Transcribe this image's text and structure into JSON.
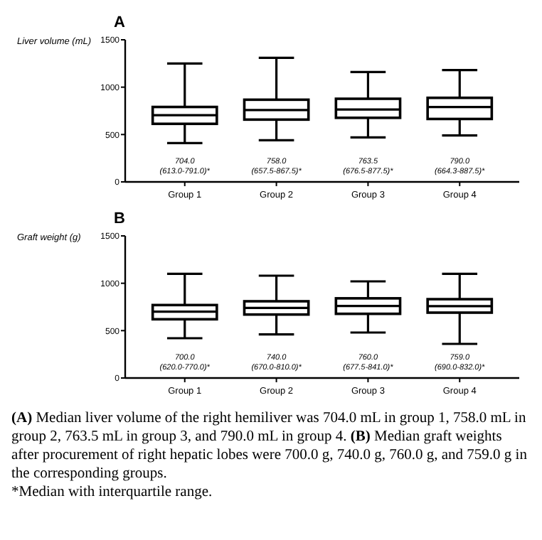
{
  "chart_data": [
    {
      "type": "box",
      "title": "A",
      "ylabel": "Liver volume (mL)",
      "categories": [
        "Group 1",
        "Group 2",
        "Group 3",
        "Group 4"
      ],
      "ylim": [
        0,
        1500
      ],
      "yticks": [
        0,
        500,
        1000,
        1500
      ],
      "grid": false,
      "color": "#000000",
      "boxes": [
        {
          "low": 410,
          "q1": 613.0,
          "median": 704.0,
          "q3": 791.0,
          "high": 1250
        },
        {
          "low": 440,
          "q1": 657.5,
          "median": 758.0,
          "q3": 867.5,
          "high": 1310
        },
        {
          "low": 470,
          "q1": 676.5,
          "median": 763.5,
          "q3": 877.5,
          "high": 1160
        },
        {
          "low": 490,
          "q1": 664.3,
          "median": 790.0,
          "q3": 887.5,
          "high": 1180
        }
      ],
      "annotations": [
        "704.0\n(613.0-791.0)*",
        "758.0\n(657.5-867.5)*",
        "763.5\n(676.5-877.5)*",
        "790.0\n(664.3-887.5)*"
      ]
    },
    {
      "type": "box",
      "title": "B",
      "ylabel": "Graft weight (g)",
      "categories": [
        "Group 1",
        "Group 2",
        "Group 3",
        "Group 4"
      ],
      "ylim": [
        0,
        1500
      ],
      "yticks": [
        0,
        500,
        1000,
        1500
      ],
      "grid": false,
      "color": "#000000",
      "boxes": [
        {
          "low": 420,
          "q1": 620.0,
          "median": 700.0,
          "q3": 770.0,
          "high": 1100
        },
        {
          "low": 460,
          "q1": 670.0,
          "median": 740.0,
          "q3": 810.0,
          "high": 1080
        },
        {
          "low": 480,
          "q1": 677.5,
          "median": 760.0,
          "q3": 841.0,
          "high": 1020
        },
        {
          "low": 360,
          "q1": 690.0,
          "median": 759.0,
          "q3": 832.0,
          "high": 1100
        }
      ],
      "annotations": [
        "700.0\n(620.0-770.0)*",
        "740.0\n(670.0-810.0)*",
        "760.0\n(677.5-841.0)*",
        "759.0\n(690.0-832.0)*",
        "(A) Median liver volume of the right hemiliver was 704.0 mL in group 1, 758.0 mL in group 2, 763.5 mL in group 3, and 790.0 mL in group 4. (B) Median graft weights after procurement of right hepatic lobes were 700.0 g, 740.0 g, 760.0 g, and 759.0 g in the corresponding groups.",
        "*Median with interquartile range."
      ]
    }
  ]
}
